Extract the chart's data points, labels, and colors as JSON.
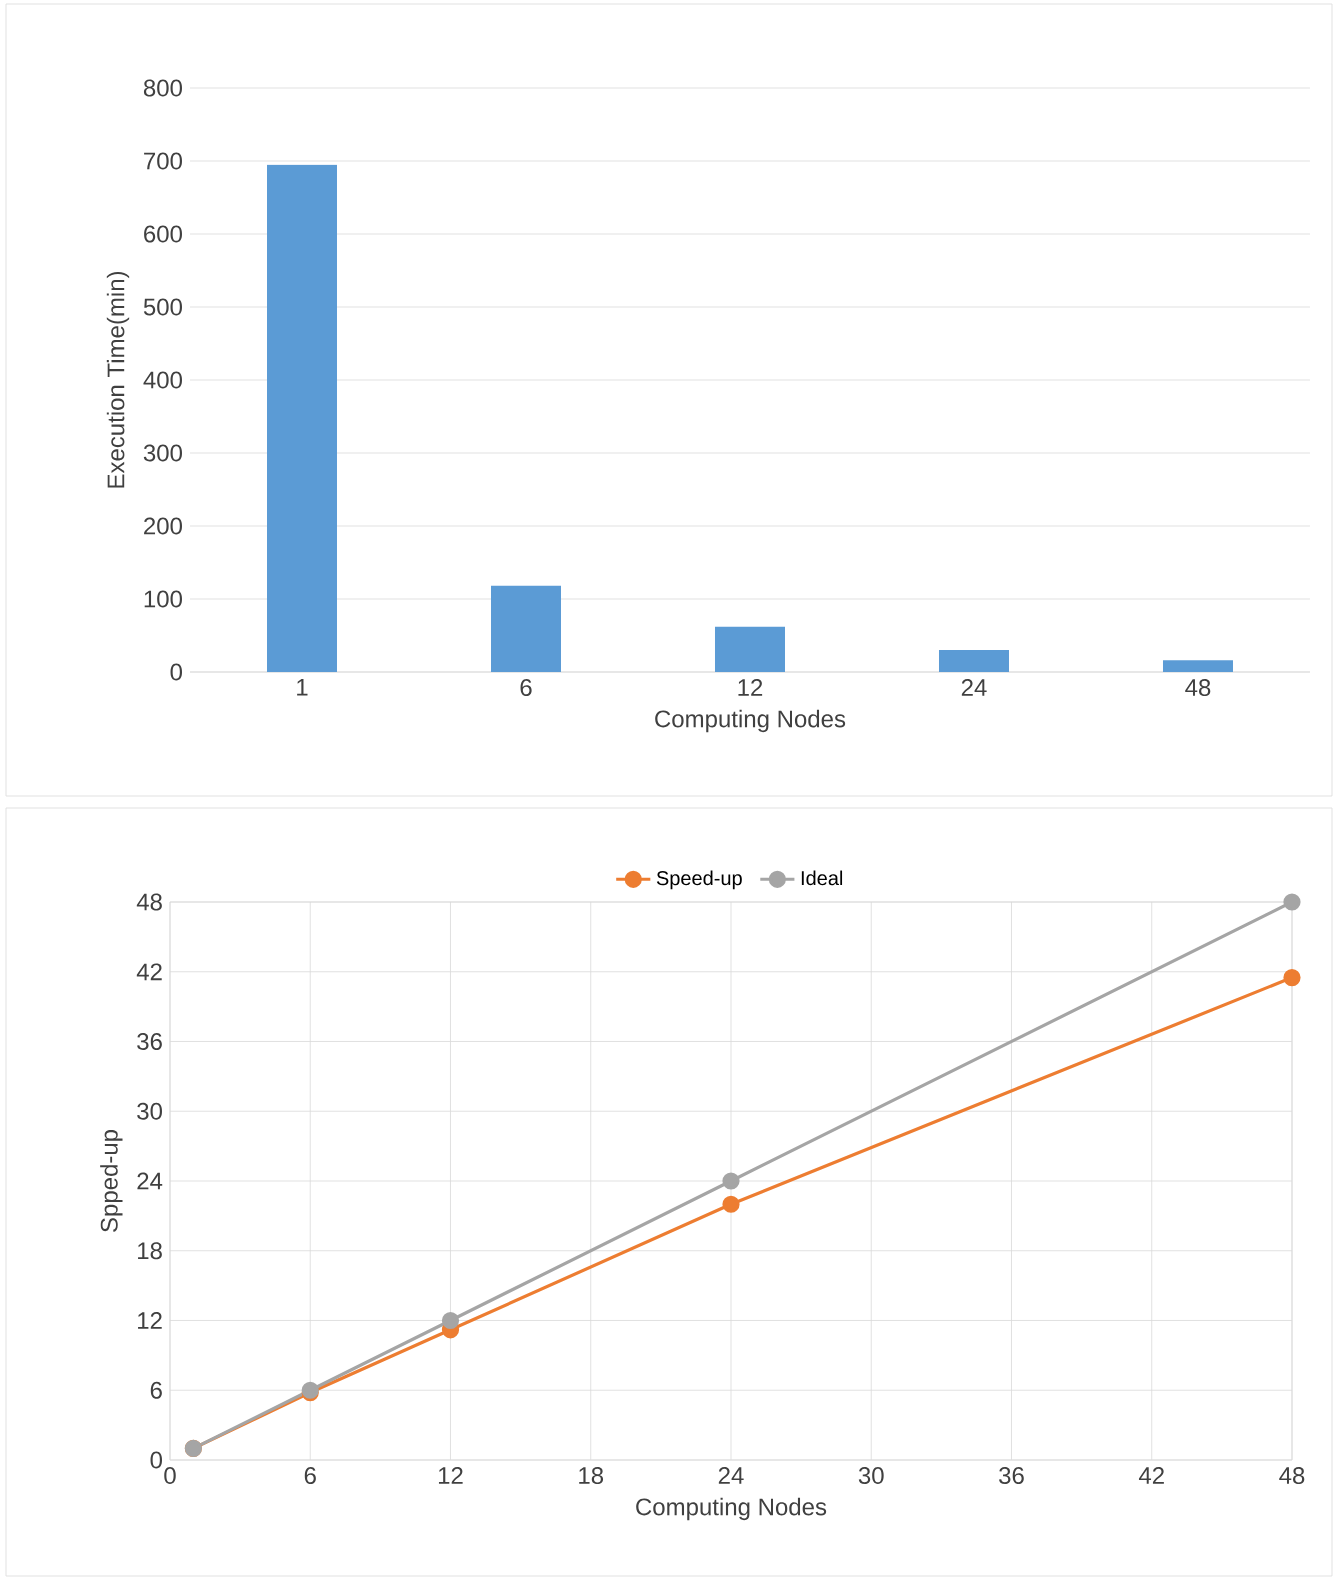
{
  "chart_data": [
    {
      "type": "bar",
      "xlabel": "Computing Nodes",
      "ylabel": "Execution Time(min)",
      "categories": [
        "1",
        "6",
        "12",
        "24",
        "48"
      ],
      "values": [
        695,
        118,
        62,
        30,
        16
      ],
      "color": "#5b9bd5",
      "ylim": [
        0,
        800
      ],
      "yticks": [
        0,
        100,
        200,
        300,
        400,
        500,
        600,
        700,
        800
      ],
      "grid": "y"
    },
    {
      "type": "line",
      "xlabel": "Computing Nodes",
      "ylabel": "Spped-up",
      "xlim": [
        0,
        48
      ],
      "xticks": [
        0,
        6,
        12,
        18,
        24,
        30,
        36,
        42,
        48
      ],
      "ylim": [
        0,
        48
      ],
      "yticks": [
        0,
        6,
        12,
        18,
        24,
        30,
        36,
        42,
        48
      ],
      "grid": true,
      "legend": "top",
      "marker": "circle",
      "series": [
        {
          "name": "Speed-up",
          "color": "#ed7d31",
          "x": [
            1,
            6,
            12,
            24,
            48
          ],
          "values": [
            1,
            5.8,
            11.2,
            22.0,
            41.5
          ]
        },
        {
          "name": "Ideal",
          "color": "#a5a5a5",
          "x": [
            1,
            6,
            12,
            24,
            48
          ],
          "values": [
            1,
            6,
            12,
            24,
            48
          ]
        }
      ]
    }
  ]
}
